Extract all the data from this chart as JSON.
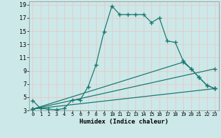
{
  "xlabel": "Humidex (Indice chaleur)",
  "background_color": "#cce8e8",
  "grid_color": "#b8d8d8",
  "line_color": "#1a7870",
  "xlim": [
    -0.5,
    23.5
  ],
  "ylim": [
    3,
    19.5
  ],
  "xticks": [
    0,
    1,
    2,
    3,
    4,
    5,
    6,
    7,
    8,
    9,
    10,
    11,
    12,
    13,
    14,
    15,
    16,
    17,
    18,
    19,
    20,
    21,
    22,
    23
  ],
  "yticks": [
    3,
    5,
    7,
    9,
    11,
    13,
    15,
    17,
    19
  ],
  "line1_x": [
    0,
    1,
    2,
    3,
    4,
    5,
    6,
    7,
    8,
    9,
    10,
    11,
    12,
    13,
    14,
    15,
    16,
    17,
    18,
    19,
    20,
    21,
    22,
    23
  ],
  "line1_y": [
    4.5,
    3.3,
    3.2,
    3.1,
    3.3,
    4.6,
    4.6,
    6.6,
    9.9,
    14.9,
    18.8,
    17.5,
    17.5,
    17.5,
    17.5,
    16.3,
    17.0,
    13.5,
    13.3,
    10.5,
    9.3,
    8.0,
    6.8,
    6.3
  ],
  "line2_x": [
    0,
    23
  ],
  "line2_y": [
    3.2,
    6.3
  ],
  "line3_x": [
    0,
    23
  ],
  "line3_y": [
    3.2,
    9.3
  ],
  "line4_x": [
    0,
    19,
    20,
    21,
    22,
    23
  ],
  "line4_y": [
    3.2,
    10.3,
    9.3,
    8.0,
    6.8,
    6.3
  ]
}
